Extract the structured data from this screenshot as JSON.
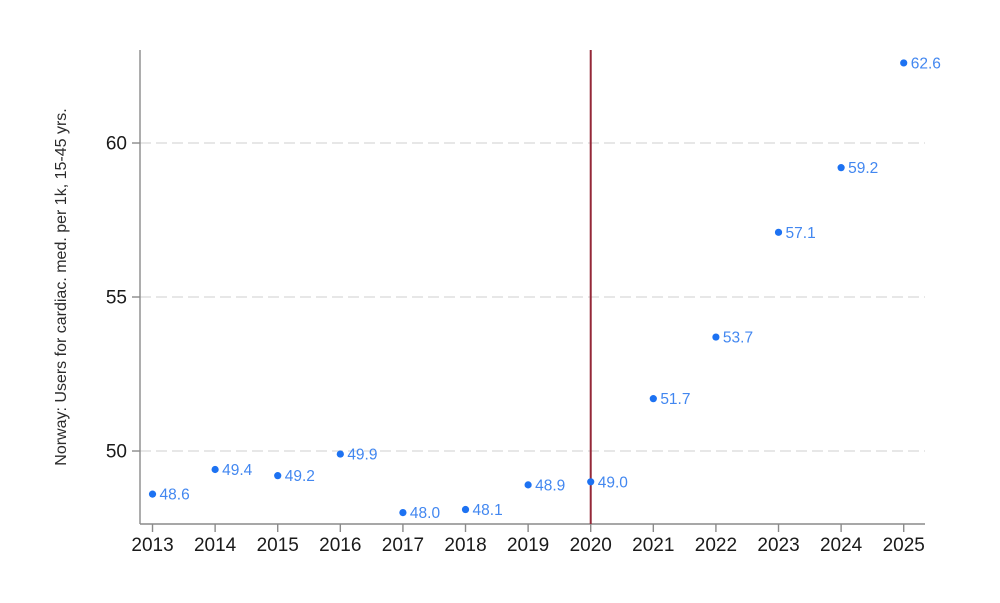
{
  "chart_data": {
    "type": "scatter",
    "title": "",
    "xlabel": "",
    "ylabel": "Norway: Users for cardiac. med. per 1k, 15-45 yrs.",
    "x": [
      2013,
      2014,
      2015,
      2016,
      2017,
      2018,
      2019,
      2020,
      2021,
      2022,
      2023,
      2024,
      2025
    ],
    "values": [
      48.6,
      49.4,
      49.2,
      49.9,
      48.0,
      48.1,
      48.9,
      49.0,
      51.7,
      53.7,
      57.1,
      59.2,
      62.6
    ],
    "point_labels": [
      "48.6",
      "49.4",
      "49.2",
      "49.9",
      "48.0",
      "48.1",
      "48.9",
      "49.0",
      "51.7",
      "53.7",
      "57.1",
      "59.2",
      "62.6"
    ],
    "xtick_labels": [
      "2013",
      "2014",
      "2015",
      "2016",
      "2017",
      "2018",
      "2019",
      "2020",
      "2021",
      "2022",
      "2023",
      "2024",
      "2025"
    ],
    "xticks": [
      2013,
      2014,
      2015,
      2016,
      2017,
      2018,
      2019,
      2020,
      2021,
      2022,
      2023,
      2024,
      2025
    ],
    "yticks": [
      50,
      55,
      60
    ],
    "ytick_labels": [
      "50",
      "55",
      "60"
    ],
    "xlim": [
      2012.8,
      2025.34
    ],
    "ylim": [
      47.63,
      63.02
    ],
    "grid": "horizontal-dashed",
    "legend": "none",
    "vline_x": 2020,
    "colors": {
      "marker": "#1d72f2",
      "point_label": "#4287f0",
      "vline": "#942838",
      "grid": "#e7e7e7",
      "axis": "#8a8a8a",
      "tick_text": "#1a1a1a",
      "axis_title_text": "#2b2b2b",
      "background": "#ffffff"
    }
  }
}
